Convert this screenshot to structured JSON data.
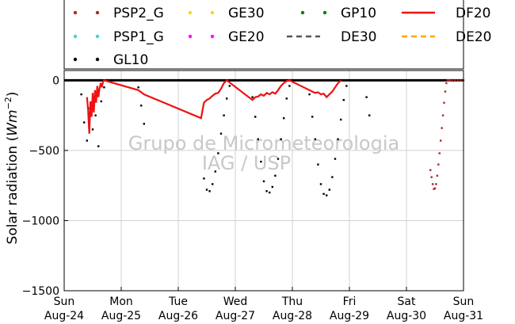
{
  "chart_data": {
    "type": "line",
    "ylabel": "Solar radiation (Wm^-2)",
    "ylabel_main": "Solar radiation (",
    "ylabel_unit": "Wm",
    "ylabel_exp": "−2",
    "ylabel_close": ")",
    "ylim": [
      -1500,
      70
    ],
    "yticks": [
      0,
      -500,
      -1000,
      -1500
    ],
    "ytick_labels": [
      "0",
      "−500",
      "−1000",
      "−1500"
    ],
    "xlim": [
      0,
      7
    ],
    "xticks": [
      0,
      1,
      2,
      3,
      4,
      5,
      6,
      7
    ],
    "xtick_labels_day": [
      "Sun",
      "Mon",
      "Tue",
      "Wed",
      "Thu",
      "Fri",
      "Sat",
      "Sun"
    ],
    "xtick_labels_date": [
      "Aug-24",
      "Aug-25",
      "Aug-26",
      "Aug-27",
      "Aug-28",
      "Aug-29",
      "Aug-30",
      "Aug-31"
    ],
    "grid": true,
    "legend_placement": "top",
    "watermark_line1": "Grupo de Micrometeorologia",
    "watermark_line2": "IAG / USP",
    "series": [
      {
        "name": "PSP2_G",
        "style": "dots",
        "color": "#a52a2a",
        "x": [
          6.42,
          6.44,
          6.46,
          6.48,
          6.5,
          6.52,
          6.54,
          6.56,
          6.58,
          6.6,
          6.62,
          6.64,
          6.66,
          6.68,
          6.7,
          6.72,
          6.74,
          6.76,
          6.8,
          6.85,
          6.9,
          6.95,
          7.0
        ],
        "y": [
          -640,
          -690,
          -740,
          -775,
          -770,
          -740,
          -680,
          -600,
          -520,
          -430,
          -340,
          -250,
          -160,
          -80,
          -20,
          0,
          0,
          0,
          0,
          0,
          0,
          0,
          0
        ]
      },
      {
        "name": "PSP1_G",
        "style": "dots",
        "color": "#48d1cc",
        "x": [],
        "y": []
      },
      {
        "name": "GL10",
        "style": "dots",
        "color": "#000000",
        "x": [
          0.3,
          0.35,
          0.4,
          0.45,
          0.5,
          0.55,
          0.6,
          0.65,
          0.7,
          1.3,
          1.35,
          1.4,
          2.45,
          2.5,
          2.55,
          2.6,
          2.65,
          2.7,
          2.75,
          2.8,
          2.85,
          2.9,
          2.95,
          3.0,
          3.05,
          3.1,
          3.3,
          3.35,
          3.4,
          3.45,
          3.5,
          3.55,
          3.6,
          3.65,
          3.7,
          3.75,
          3.8,
          3.85,
          3.9,
          3.95,
          4.0,
          4.3,
          4.35,
          4.4,
          4.45,
          4.5,
          4.55,
          4.6,
          4.65,
          4.7,
          4.75,
          4.8,
          4.85,
          4.9,
          4.95,
          5.0,
          5.3,
          5.35
        ],
        "y": [
          -100,
          -300,
          -430,
          -200,
          -350,
          -250,
          -470,
          -150,
          -50,
          -50,
          -180,
          -310,
          -700,
          -780,
          -790,
          -740,
          -650,
          -520,
          -380,
          -250,
          -130,
          -40,
          0,
          0,
          0,
          0,
          -120,
          -260,
          -420,
          -580,
          -720,
          -790,
          -800,
          -760,
          -680,
          -560,
          -420,
          -270,
          -130,
          -40,
          0,
          -100,
          -260,
          -420,
          -600,
          -740,
          -810,
          -820,
          -780,
          -690,
          -560,
          -420,
          -280,
          -140,
          -40,
          0,
          -120,
          -250
        ]
      },
      {
        "name": "GE30",
        "style": "dots",
        "color": "#ffd700",
        "x": [],
        "y": []
      },
      {
        "name": "GE20",
        "style": "dots",
        "color": "#ff00ff",
        "x": [],
        "y": []
      },
      {
        "name": "GP10",
        "style": "dots",
        "color": "#008000",
        "x": [],
        "y": []
      },
      {
        "name": "DE30",
        "style": "dashed",
        "color": "#555555",
        "x": [],
        "y": []
      },
      {
        "name": "DF20",
        "style": "line",
        "color": "#ee1111",
        "x": [
          0.4,
          0.42,
          0.44,
          0.46,
          0.48,
          0.5,
          0.52,
          0.54,
          0.56,
          0.58,
          0.6,
          0.62,
          0.64,
          0.66,
          0.68,
          0.7,
          1.3,
          1.4,
          2.4,
          2.45,
          2.5,
          2.55,
          2.6,
          2.65,
          2.7,
          2.75,
          2.8,
          2.85,
          3.3,
          3.35,
          3.4,
          3.45,
          3.5,
          3.55,
          3.6,
          3.65,
          3.7,
          3.75,
          3.8,
          3.85,
          3.9,
          3.95,
          4.3,
          4.35,
          4.4,
          4.45,
          4.5,
          4.55,
          4.6,
          4.65,
          4.7,
          4.75,
          4.8,
          4.85
        ],
        "y": [
          -120,
          -210,
          -380,
          -150,
          -260,
          -90,
          -230,
          -70,
          -160,
          -40,
          -120,
          -60,
          -20,
          -50,
          -10,
          0,
          -70,
          -100,
          -270,
          -160,
          -140,
          -130,
          -110,
          -95,
          -90,
          -60,
          -20,
          0,
          -140,
          -120,
          -115,
          -100,
          -110,
          -90,
          -100,
          -85,
          -95,
          -70,
          -40,
          -20,
          -5,
          0,
          -70,
          -80,
          -90,
          -85,
          -100,
          -95,
          -120,
          -100,
          -80,
          -50,
          -20,
          0
        ]
      },
      {
        "name": "DE20",
        "style": "dashed",
        "color": "#ffa500",
        "x": [],
        "y": []
      }
    ],
    "zero_line": [
      0,
      7
    ]
  }
}
